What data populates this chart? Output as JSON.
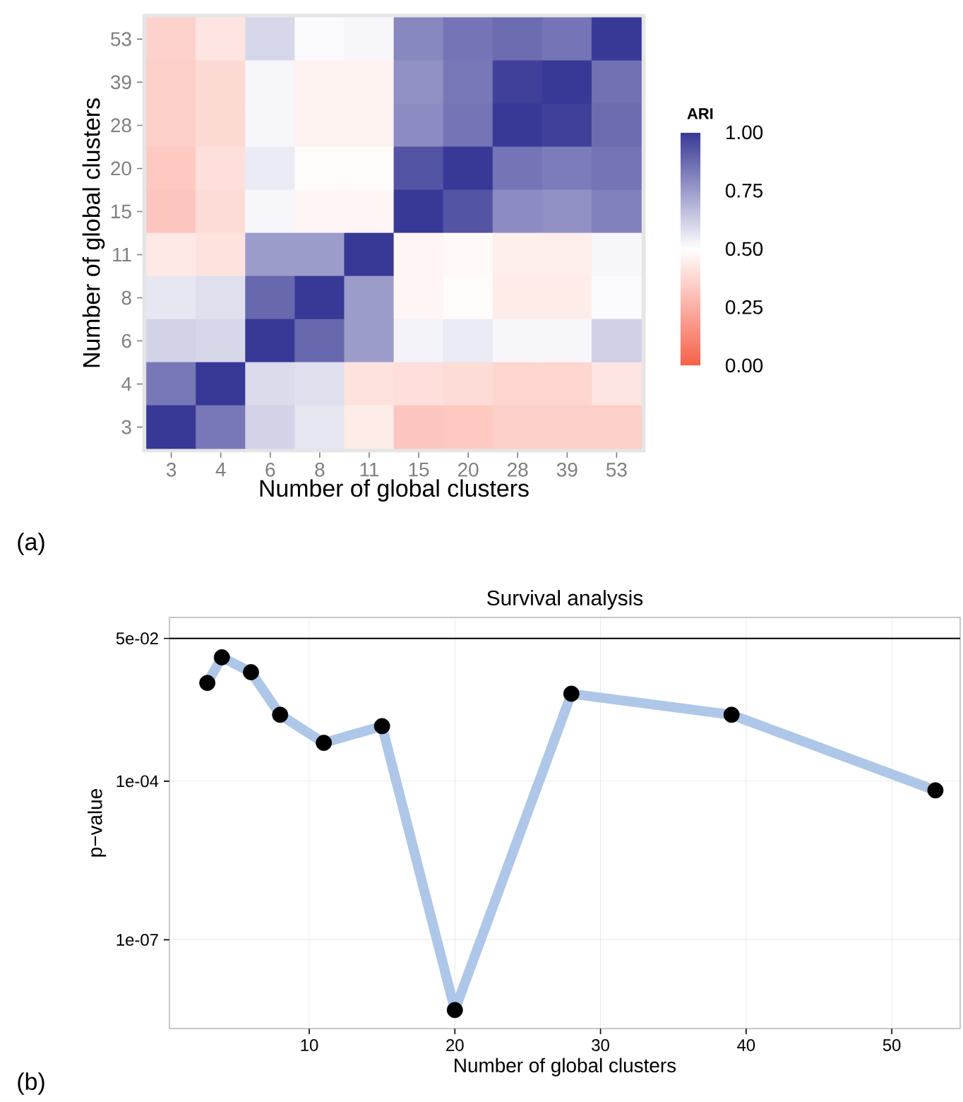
{
  "chart_data": [
    {
      "type": "heatmap",
      "xlabel": "Number of global clusters",
      "ylabel": "Number of global clusters",
      "clabel": "ARI",
      "categories": [
        "3",
        "4",
        "6",
        "8",
        "11",
        "15",
        "20",
        "28",
        "39",
        "53"
      ],
      "y_categories": [
        "53",
        "39",
        "28",
        "20",
        "15",
        "11",
        "8",
        "6",
        "4",
        "3"
      ],
      "cells": [
        [
          0.36,
          0.42,
          0.6,
          0.51,
          0.52,
          0.8,
          0.85,
          0.87,
          0.85,
          1.0
        ],
        [
          0.35,
          0.38,
          0.52,
          0.46,
          0.46,
          0.78,
          0.84,
          0.98,
          1.0,
          0.86
        ],
        [
          0.35,
          0.38,
          0.52,
          0.46,
          0.46,
          0.79,
          0.85,
          1.0,
          0.98,
          0.87
        ],
        [
          0.33,
          0.4,
          0.55,
          0.49,
          0.49,
          0.93,
          1.0,
          0.85,
          0.83,
          0.85
        ],
        [
          0.32,
          0.39,
          0.52,
          0.47,
          0.47,
          1.0,
          0.93,
          0.79,
          0.78,
          0.82
        ],
        [
          0.43,
          0.41,
          0.75,
          0.75,
          1.0,
          0.47,
          0.48,
          0.45,
          0.45,
          0.52
        ],
        [
          0.56,
          0.58,
          0.88,
          1.0,
          0.75,
          0.47,
          0.49,
          0.44,
          0.44,
          0.51
        ],
        [
          0.61,
          0.6,
          1.0,
          0.88,
          0.75,
          0.53,
          0.55,
          0.52,
          0.52,
          0.62
        ],
        [
          0.84,
          1.0,
          0.59,
          0.58,
          0.41,
          0.4,
          0.39,
          0.37,
          0.37,
          0.42
        ],
        [
          1.0,
          0.84,
          0.61,
          0.56,
          0.44,
          0.32,
          0.33,
          0.35,
          0.35,
          0.35
        ]
      ],
      "clim": [
        0,
        1
      ],
      "cticks": [
        {
          "value": 0,
          "label": "0.00"
        },
        {
          "value": 0.25,
          "label": "0.25"
        },
        {
          "value": 0.5,
          "label": "0.50"
        },
        {
          "value": 0.75,
          "label": "0.75"
        },
        {
          "value": 1,
          "label": "1.00"
        }
      ],
      "annotations": [
        "(a)"
      ]
    },
    {
      "type": "line",
      "title": "Survival analysis",
      "xlabel": "Number of global clusters",
      "ylabel": "p−value",
      "x": [
        3,
        4,
        6,
        8,
        11,
        15,
        20,
        28,
        39,
        53
      ],
      "series": [
        {
          "color": "#aec7e8",
          "values": [
            0.0072,
            0.022,
            0.0115,
            0.0018,
            0.00053,
            0.0011,
            4.7e-09,
            0.0045,
            0.0018,
            6.7e-05
          ]
        }
      ],
      "log": "y",
      "xlim": [
        0.4,
        54.7
      ],
      "ylim": [
        2.1e-09,
        0.125
      ],
      "xticks": [
        10,
        20,
        30,
        40,
        50
      ],
      "yticks": [
        {
          "value": 1e-07,
          "label": "1e-07"
        },
        {
          "value": 0.0001,
          "label": "1e-04"
        },
        {
          "value": 0.05,
          "label": "5e-02"
        }
      ],
      "ref_lines": [
        {
          "axis": "y",
          "value": 0.05,
          "color": "#000000"
        }
      ],
      "grid": true,
      "marker": "circle",
      "annotations": [
        "(b)"
      ]
    }
  ]
}
